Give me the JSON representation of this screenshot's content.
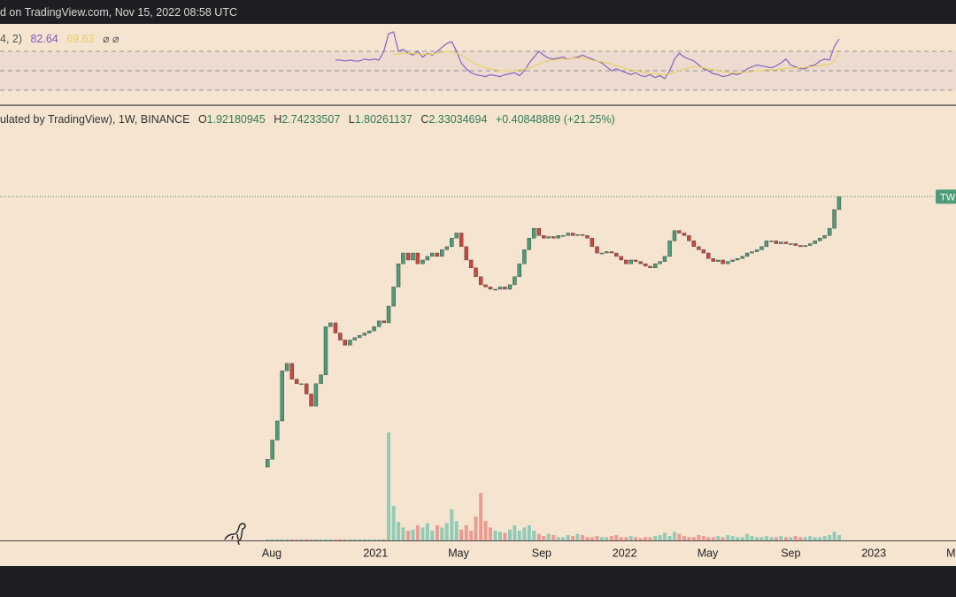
{
  "header": {
    "caption": "d on TradingView.com, Nov 15, 2022 08:58 UTC",
    "rsi_params": "4, 2)",
    "legend_prefix": "ulated by TradingView), 1W, BINANCE",
    "ohlc_letters": [
      "O",
      "H",
      "L",
      "C"
    ],
    "high": "2.74233507",
    "low": "1.80261137",
    "change": "+0.40848889 (+21.25%)",
    "price_tag": "TW"
  },
  "chart_data": [
    {
      "type": "candlestick",
      "log_scale": true,
      "up_color": "#4c9c76",
      "down_color": "#c8483f",
      "volume_up_color": "#92cbb5",
      "volume_down_color": "#eb9b92",
      "xlim": [
        -6.09,
        39.96
      ],
      "ylim": [
        0.0131,
        9.1
      ],
      "volume_lim": [
        0,
        100
      ],
      "xticks": [
        {
          "value": 7,
          "label": "Aug"
        },
        {
          "value": 12,
          "label": "2021"
        },
        {
          "value": 16,
          "label": "May"
        },
        {
          "value": 20,
          "label": "Sep"
        },
        {
          "value": 24,
          "label": "2022"
        },
        {
          "value": 28,
          "label": "May"
        },
        {
          "value": 32,
          "label": "Sep"
        },
        {
          "value": 36,
          "label": "2023"
        },
        {
          "value": 40,
          "label": "May"
        }
      ],
      "x": [
        6.8,
        7.03,
        7.27,
        7.5,
        7.73,
        7.97,
        8.2,
        8.43,
        8.67,
        8.9,
        9.13,
        9.37,
        9.6,
        9.83,
        10.07,
        10.3,
        10.53,
        10.77,
        11.0,
        11.23,
        11.47,
        11.7,
        11.93,
        12.17,
        12.4,
        12.63,
        12.87,
        13.1,
        13.33,
        13.57,
        13.8,
        14.03,
        14.27,
        14.5,
        14.73,
        14.97,
        15.2,
        15.43,
        15.67,
        15.9,
        16.13,
        16.37,
        16.6,
        16.83,
        17.07,
        17.3,
        17.53,
        17.77,
        18.0,
        18.23,
        18.47,
        18.7,
        18.93,
        19.17,
        19.4,
        19.63,
        19.87,
        20.1,
        20.33,
        20.57,
        20.8,
        21.03,
        21.27,
        21.5,
        21.73,
        21.97,
        22.2,
        22.43,
        22.67,
        22.9,
        23.13,
        23.37,
        23.6,
        23.83,
        24.07,
        24.3,
        24.53,
        24.77,
        25.0,
        25.23,
        25.47,
        25.7,
        25.93,
        26.17,
        26.4,
        26.63,
        26.87,
        27.1,
        27.33,
        27.57,
        27.8,
        28.03,
        28.27,
        28.5,
        28.73,
        28.97,
        29.2,
        29.43,
        29.67,
        29.9,
        30.13,
        30.37,
        30.6,
        30.83,
        31.07,
        31.3,
        31.53,
        31.77,
        32.0,
        32.23,
        32.47,
        32.7,
        32.93,
        33.17,
        33.4,
        33.63,
        33.87,
        34.1,
        34.33
      ],
      "open": [
        0.04,
        0.045,
        0.06,
        0.08,
        0.17,
        0.19,
        0.15,
        0.14,
        0.14,
        0.12,
        0.1,
        0.14,
        0.16,
        0.33,
        0.35,
        0.3,
        0.27,
        0.25,
        0.27,
        0.28,
        0.29,
        0.3,
        0.31,
        0.33,
        0.36,
        0.35,
        0.45,
        0.6,
        0.85,
        1.0,
        0.9,
        1.0,
        0.85,
        0.9,
        0.95,
        1.0,
        0.95,
        1.05,
        1.1,
        1.25,
        1.35,
        1.1,
        0.9,
        0.8,
        0.7,
        0.62,
        0.6,
        0.58,
        0.58,
        0.6,
        0.58,
        0.62,
        0.7,
        0.85,
        1.05,
        1.25,
        1.45,
        1.3,
        1.25,
        1.28,
        1.25,
        1.3,
        1.3,
        1.35,
        1.3,
        1.32,
        1.3,
        1.25,
        1.1,
        1.0,
        1.0,
        1.02,
        1.0,
        0.95,
        0.9,
        0.85,
        0.9,
        0.88,
        0.85,
        0.82,
        0.8,
        0.85,
        0.88,
        0.95,
        1.2,
        1.4,
        1.35,
        1.3,
        1.2,
        1.1,
        1.05,
        1.0,
        0.92,
        0.88,
        0.9,
        0.85,
        0.88,
        0.9,
        0.92,
        0.95,
        1.0,
        1.02,
        1.05,
        1.1,
        1.2,
        1.2,
        1.15,
        1.18,
        1.15,
        1.15,
        1.12,
        1.1,
        1.12,
        1.15,
        1.2,
        1.25,
        1.3,
        1.45,
        1.92180945
      ],
      "close": [
        0.045,
        0.06,
        0.08,
        0.17,
        0.19,
        0.15,
        0.14,
        0.14,
        0.12,
        0.1,
        0.14,
        0.16,
        0.33,
        0.35,
        0.3,
        0.27,
        0.25,
        0.27,
        0.28,
        0.29,
        0.3,
        0.31,
        0.33,
        0.36,
        0.35,
        0.45,
        0.6,
        0.85,
        1.0,
        0.9,
        1.0,
        0.85,
        0.9,
        0.95,
        1.0,
        0.95,
        1.05,
        1.1,
        1.25,
        1.35,
        1.1,
        0.9,
        0.8,
        0.7,
        0.62,
        0.6,
        0.58,
        0.58,
        0.6,
        0.58,
        0.62,
        0.7,
        0.85,
        1.05,
        1.25,
        1.45,
        1.3,
        1.25,
        1.28,
        1.25,
        1.3,
        1.3,
        1.35,
        1.3,
        1.32,
        1.3,
        1.25,
        1.1,
        1.0,
        1.0,
        1.02,
        1.0,
        0.95,
        0.9,
        0.85,
        0.9,
        0.88,
        0.85,
        0.82,
        0.8,
        0.85,
        0.88,
        0.95,
        1.2,
        1.4,
        1.35,
        1.3,
        1.2,
        1.1,
        1.05,
        1.0,
        0.92,
        0.88,
        0.9,
        0.85,
        0.88,
        0.9,
        0.92,
        0.95,
        1.0,
        1.02,
        1.05,
        1.1,
        1.2,
        1.2,
        1.15,
        1.18,
        1.15,
        1.15,
        1.12,
        1.1,
        1.12,
        1.15,
        1.2,
        1.25,
        1.3,
        1.45,
        1.92,
        2.33034694
      ],
      "volume": [
        1,
        1,
        1,
        1,
        1,
        1,
        1,
        1,
        1,
        1,
        1,
        1,
        1,
        1,
        1,
        1,
        1,
        1,
        1,
        1,
        1,
        1,
        1,
        1,
        1,
        100,
        32,
        17,
        12,
        9,
        10,
        14,
        12,
        16,
        9,
        14,
        12,
        16,
        29,
        18,
        10,
        14,
        9,
        22,
        44,
        18,
        12,
        9,
        8,
        7,
        10,
        14,
        9,
        12,
        14,
        9,
        6,
        4,
        6,
        5,
        3,
        3,
        5,
        4,
        6,
        5,
        3,
        3,
        4,
        3,
        3,
        4,
        5,
        3,
        3,
        4,
        3,
        2,
        3,
        3,
        4,
        5,
        7,
        4,
        8,
        6,
        4,
        3,
        3,
        5,
        4,
        3,
        3,
        4,
        3,
        5,
        4,
        3,
        3,
        6,
        4,
        3,
        3,
        4,
        3,
        3,
        4,
        3,
        3,
        4,
        3,
        3,
        4,
        3,
        3,
        4,
        5,
        8,
        5
      ]
    },
    {
      "type": "line",
      "xlim": [
        -6.09,
        39.96
      ],
      "ylim": [
        14.5,
        95.5
      ],
      "levels": [
        70,
        50,
        30
      ],
      "band_color": "#b79ad6",
      "x": [
        10.07,
        10.3,
        10.53,
        10.77,
        11.0,
        11.23,
        11.47,
        11.7,
        11.93,
        12.17,
        12.4,
        12.63,
        12.87,
        13.1,
        13.33,
        13.57,
        13.8,
        14.03,
        14.27,
        14.5,
        14.73,
        14.97,
        15.2,
        15.43,
        15.67,
        15.9,
        16.13,
        16.37,
        16.6,
        16.83,
        17.07,
        17.3,
        17.53,
        17.77,
        18.0,
        18.23,
        18.47,
        18.7,
        18.93,
        19.17,
        19.4,
        19.63,
        19.87,
        20.1,
        20.33,
        20.57,
        20.8,
        21.03,
        21.27,
        21.5,
        21.73,
        21.97,
        22.2,
        22.43,
        22.67,
        22.9,
        23.13,
        23.37,
        23.6,
        23.83,
        24.07,
        24.3,
        24.53,
        24.77,
        25.0,
        25.23,
        25.47,
        25.7,
        25.93,
        26.17,
        26.4,
        26.63,
        26.87,
        27.1,
        27.33,
        27.57,
        27.8,
        28.03,
        28.27,
        28.5,
        28.73,
        28.97,
        29.2,
        29.43,
        29.67,
        29.9,
        30.13,
        30.37,
        30.6,
        30.83,
        31.07,
        31.3,
        31.53,
        31.77,
        32.0,
        32.23,
        32.47,
        32.7,
        32.93,
        33.17,
        33.4,
        33.63,
        33.87,
        34.1,
        34.33
      ],
      "series": [
        {
          "color": "#7e57c2",
          "values": [
            61,
            61,
            60,
            61,
            60,
            60,
            62,
            61,
            62,
            61,
            70,
            88,
            90,
            70,
            72,
            68,
            66,
            70,
            64,
            68,
            66,
            70,
            74,
            78,
            80,
            70,
            58,
            52,
            48,
            46,
            45,
            44,
            46,
            45,
            44,
            46,
            47,
            48,
            45,
            50,
            58,
            64,
            70,
            66,
            63,
            62,
            63,
            64,
            62,
            63,
            64,
            66,
            64,
            62,
            60,
            58,
            54,
            50,
            52,
            50,
            48,
            46,
            48,
            45,
            44,
            46,
            43,
            45,
            42,
            50,
            62,
            68,
            64,
            62,
            60,
            56,
            52,
            50,
            47,
            46,
            44,
            45,
            47,
            46,
            48,
            52,
            54,
            56,
            55,
            54,
            53,
            55,
            58,
            62,
            56,
            54,
            52,
            52,
            55,
            56,
            60,
            62,
            61,
            75,
            82.64
          ]
        },
        {
          "color": "#e8cf5a",
          "values": [
            null,
            null,
            null,
            null,
            null,
            null,
            null,
            null,
            null,
            null,
            null,
            null,
            67,
            67,
            68,
            68,
            68,
            67,
            67,
            67,
            67,
            68,
            69,
            70,
            70,
            68,
            66,
            63,
            60,
            57,
            55,
            53,
            52,
            51,
            50,
            50,
            50,
            50,
            51,
            52,
            53,
            55,
            57,
            59,
            60,
            61,
            62,
            62,
            62,
            63,
            63,
            63,
            62,
            61,
            60,
            59,
            58,
            57,
            55,
            54,
            52,
            51,
            50,
            49,
            48,
            47,
            47,
            46,
            46,
            47,
            48,
            50,
            52,
            53,
            54,
            54,
            53,
            52,
            51,
            50,
            49,
            48,
            48,
            48,
            48,
            49,
            49,
            50,
            50,
            51,
            51,
            51,
            52,
            52,
            53,
            53,
            53,
            54,
            54,
            55,
            55,
            56,
            57,
            60,
            69.63
          ]
        }
      ]
    }
  ]
}
